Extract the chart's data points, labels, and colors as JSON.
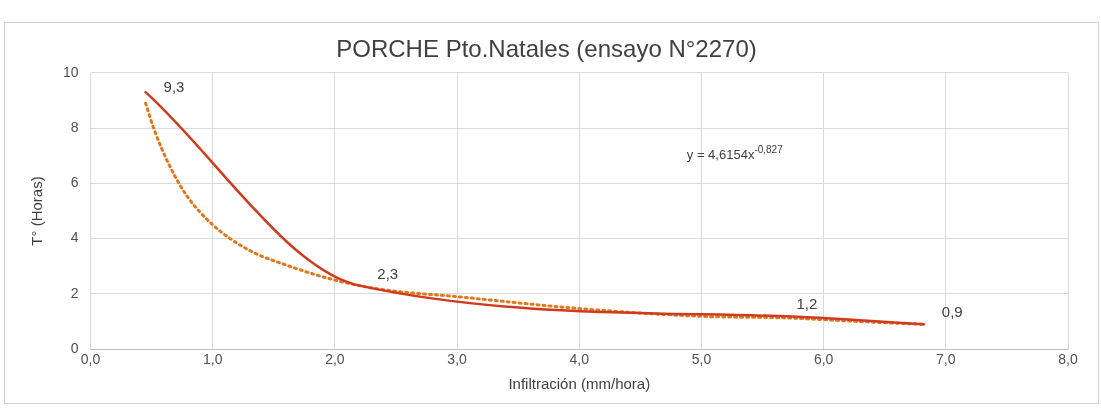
{
  "chart_data": {
    "type": "line",
    "title": "PORCHE Pto.Natales (ensayo N°2270)",
    "xlabel": "Infiltración (mm/hora)",
    "ylabel": "T° (Horas)",
    "xlim": [
      0,
      8
    ],
    "xticks": [
      {
        "value": 0,
        "label": "0,0"
      },
      {
        "value": 1,
        "label": "1,0"
      },
      {
        "value": 2,
        "label": "2,0"
      },
      {
        "value": 3,
        "label": "3,0"
      },
      {
        "value": 4,
        "label": "4,0"
      },
      {
        "value": 5,
        "label": "5,0"
      },
      {
        "value": 6,
        "label": "6,0"
      },
      {
        "value": 7,
        "label": "7,0"
      },
      {
        "value": 8,
        "label": "8,0"
      }
    ],
    "ylim": [
      0,
      10
    ],
    "yticks": [
      0,
      2,
      4,
      6,
      8,
      10
    ],
    "series": [
      {
        "color": "#d03a1e",
        "x": [
          0.45,
          2.2,
          5.63,
          6.82
        ],
        "values": [
          9.3,
          2.3,
          1.2,
          0.9
        ],
        "value_labels": [
          "9,3",
          "2,3",
          "1,2",
          "0,9"
        ],
        "line_style": "solid"
      },
      {
        "color": "#e0781e",
        "x": [
          0.45,
          0.52,
          0.64,
          0.78,
          1.0,
          1.29,
          1.63,
          2.0,
          2.4,
          3.0,
          4.0,
          5.0,
          5.7,
          6.3,
          6.82
        ],
        "values": [
          8.9,
          7.95,
          6.7,
          5.6,
          4.5,
          3.6,
          3.0,
          2.5,
          2.15,
          1.9,
          1.47,
          1.19,
          1.13,
          1.0,
          0.9
        ],
        "line_style": "dotted"
      }
    ],
    "annotations": [
      "y = 4,6154x$^{-0,827}$"
    ],
    "grid": true,
    "legend": false,
    "marker": "none"
  }
}
